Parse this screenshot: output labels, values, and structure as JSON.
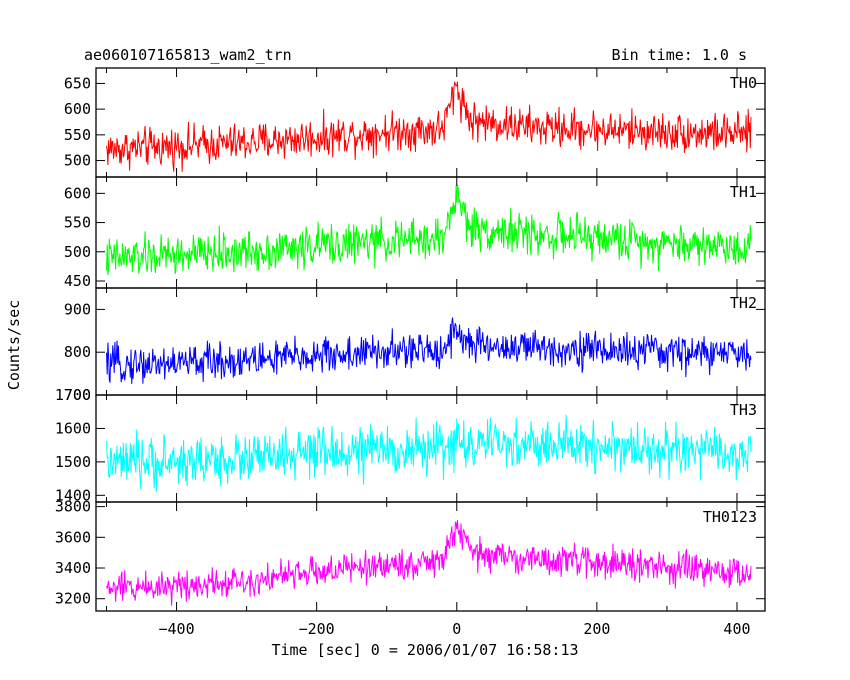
{
  "header": {
    "title": "ae060107165813_wam2_trn",
    "bin_time": "Bin time: 1.0 s"
  },
  "chart_data": [
    {
      "type": "line",
      "panel": "TH0",
      "color": "#ff0000",
      "ylim": [
        468,
        680
      ],
      "yticks": [
        500,
        550,
        600,
        650
      ],
      "ytick_labels": [
        "500",
        "550",
        "600",
        "650"
      ],
      "series": [
        {
          "name": "TH0",
          "x_range": [
            -500,
            420
          ],
          "trend_x": [
            -500,
            -400,
            -300,
            -200,
            -100,
            -20,
            0,
            5,
            20,
            100,
            200,
            300,
            420
          ],
          "trend_y": [
            522,
            528,
            535,
            545,
            556,
            562,
            648,
            625,
            578,
            565,
            560,
            555,
            552
          ],
          "noise_amplitude": 28
        }
      ]
    },
    {
      "type": "line",
      "panel": "TH1",
      "color": "#00ff00",
      "ylim": [
        438,
        628
      ],
      "yticks": [
        450,
        500,
        550,
        600
      ],
      "ytick_labels": [
        "450",
        "500",
        "550",
        "600"
      ],
      "series": [
        {
          "name": "TH1",
          "x_range": [
            -500,
            420
          ],
          "trend_x": [
            -500,
            -400,
            -300,
            -200,
            -100,
            -20,
            0,
            5,
            20,
            100,
            200,
            300,
            420
          ],
          "trend_y": [
            488,
            494,
            500,
            510,
            518,
            522,
            598,
            580,
            540,
            530,
            524,
            515,
            508
          ],
          "noise_amplitude": 26
        }
      ]
    },
    {
      "type": "line",
      "panel": "TH2",
      "color": "#0000ff",
      "ylim": [
        700,
        950
      ],
      "yticks": [
        700,
        800,
        900
      ],
      "ytick_labels": [
        "700",
        "800",
        "900"
      ],
      "series": [
        {
          "name": "TH2",
          "x_range": [
            -500,
            420
          ],
          "trend_x": [
            -500,
            -400,
            -300,
            -200,
            -100,
            -20,
            0,
            5,
            20,
            100,
            200,
            300,
            420
          ],
          "trend_y": [
            770,
            775,
            782,
            792,
            800,
            805,
            860,
            840,
            815,
            810,
            806,
            800,
            795
          ],
          "noise_amplitude": 32
        }
      ]
    },
    {
      "type": "line",
      "panel": "TH3",
      "color": "#00ffff",
      "ylim": [
        1380,
        1700
      ],
      "yticks": [
        1400,
        1500,
        1600,
        1700
      ],
      "ytick_labels": [
        "1400",
        "1500",
        "1600",
        "1700"
      ],
      "series": [
        {
          "name": "TH3",
          "x_range": [
            -500,
            420
          ],
          "trend_x": [
            -500,
            -400,
            -300,
            -200,
            -100,
            -20,
            0,
            20,
            100,
            200,
            300,
            420
          ],
          "trend_y": [
            1495,
            1500,
            1510,
            1525,
            1535,
            1540,
            1560,
            1552,
            1550,
            1548,
            1535,
            1520
          ],
          "noise_amplitude": 55
        }
      ]
    },
    {
      "type": "line",
      "panel": "TH0123",
      "color": "#ff00ff",
      "ylim": [
        3120,
        3830
      ],
      "yticks": [
        3200,
        3400,
        3600,
        3800
      ],
      "ytick_labels": [
        "3200",
        "3400",
        "3600",
        "3800"
      ],
      "series": [
        {
          "name": "TH0123",
          "x_range": [
            -500,
            420
          ],
          "trend_x": [
            -500,
            -400,
            -300,
            -200,
            -100,
            -20,
            0,
            5,
            20,
            100,
            200,
            300,
            420
          ],
          "trend_y": [
            3265,
            3290,
            3320,
            3375,
            3420,
            3440,
            3690,
            3620,
            3500,
            3460,
            3440,
            3400,
            3360
          ],
          "noise_amplitude": 75
        }
      ]
    }
  ],
  "axes": {
    "xlim": [
      -515,
      440
    ],
    "xticks": [
      -400,
      -200,
      0,
      200,
      400
    ],
    "xtick_labels": [
      "−400",
      "−200",
      "0",
      "200",
      "400"
    ],
    "xlabel": "Time [sec] 0 = 2006/01/07 16:58:13",
    "ylabel": "Counts/sec"
  }
}
